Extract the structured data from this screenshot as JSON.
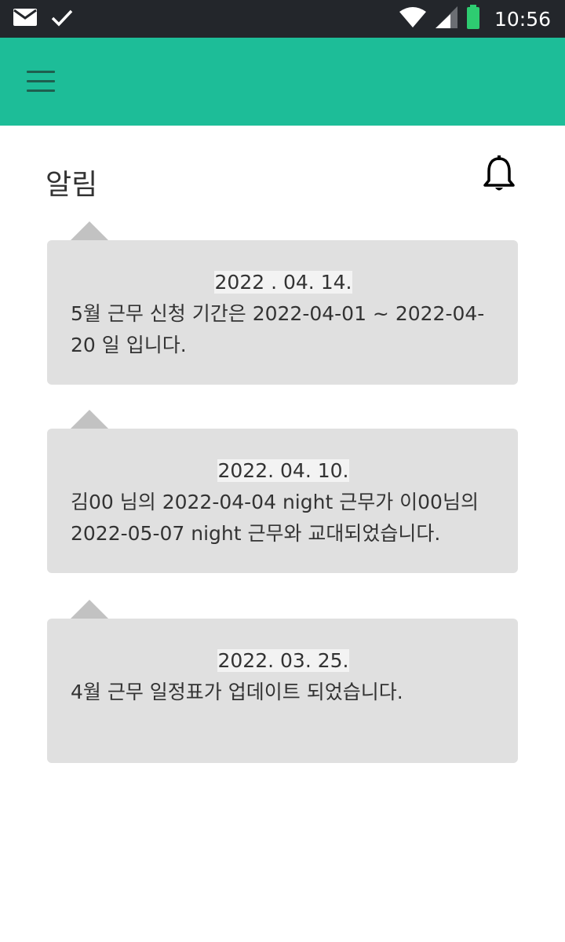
{
  "status_bar": {
    "time": "10:56",
    "icons": [
      "mail-icon",
      "check-icon",
      "wifi-icon",
      "signal-icon",
      "battery-icon"
    ],
    "battery_color": "#2ecc71"
  },
  "app_bar": {
    "color": "#1dbd98",
    "menu_icon": "hamburger-menu-icon"
  },
  "page": {
    "title": "알림",
    "bell_icon": "bell-icon"
  },
  "notifications": [
    {
      "date": "2022 . 04. 14.",
      "message": "5월 근무 신청 기간은 2022-04-01 ~ 2022-04-20 일 입니다."
    },
    {
      "date": "2022. 04. 10.",
      "message": "김00 님의 2022-04-04 night 근무가 이00님의 2022-05-07 night 근무와 교대되었습니다."
    },
    {
      "date": "2022. 03. 25.",
      "message": "4월 근무 일정표가 업데이트 되었습니다."
    }
  ]
}
